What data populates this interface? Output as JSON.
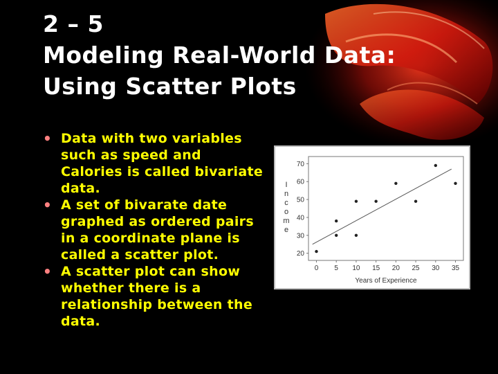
{
  "slide": {
    "title_lines": [
      "2 – 5",
      "Modeling Real-World Data:",
      "Using Scatter Plots"
    ],
    "bullets": [
      "Data with two variables such as speed and Calories is called bivariate data.",
      "A set of bivarate date graphed as ordered pairs in a coordinate plane is called a scatter plot.",
      "A scatter plot can show whether there is a relationship between the data."
    ],
    "colors": {
      "title": "#ffffff",
      "bullet_text": "#ffff00",
      "bullet_marker": "#ff8080",
      "background": "#000000"
    }
  },
  "chart_data": {
    "type": "scatter",
    "title": "",
    "xlabel": "Years of Experience",
    "ylabel": "Income",
    "xlim": [
      -2,
      37
    ],
    "ylim": [
      16,
      74
    ],
    "xticks": [
      0,
      5,
      10,
      15,
      20,
      25,
      30,
      35
    ],
    "yticks": [
      20,
      30,
      40,
      50,
      60,
      70
    ],
    "points": [
      {
        "x": 0,
        "y": 21
      },
      {
        "x": 5,
        "y": 30
      },
      {
        "x": 5,
        "y": 38
      },
      {
        "x": 10,
        "y": 30
      },
      {
        "x": 10,
        "y": 49
      },
      {
        "x": 15,
        "y": 49
      },
      {
        "x": 20,
        "y": 59
      },
      {
        "x": 25,
        "y": 49
      },
      {
        "x": 30,
        "y": 69
      },
      {
        "x": 35,
        "y": 59
      }
    ],
    "trend_line": {
      "x": [
        -1,
        34
      ],
      "y": [
        25,
        67
      ]
    },
    "grid": false,
    "legend": "none"
  }
}
